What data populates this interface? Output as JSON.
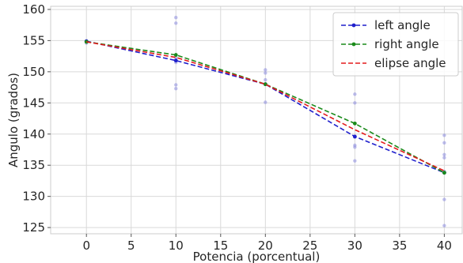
{
  "chart_data": {
    "type": "line",
    "xlabel": "Potencia (porcentual)",
    "ylabel": "Angulo (grados)",
    "xlim": [
      -4,
      42
    ],
    "ylim": [
      124,
      160.5
    ],
    "xticks": [
      0,
      5,
      10,
      15,
      20,
      25,
      30,
      35,
      40
    ],
    "yticks": [
      125,
      130,
      135,
      140,
      145,
      150,
      155,
      160
    ],
    "grid": true,
    "legend_position": "top-right",
    "x": [
      0,
      10,
      20,
      30,
      40
    ],
    "series": [
      {
        "name": "left angle",
        "values": [
          154.9,
          151.8,
          148.0,
          139.6,
          133.8
        ],
        "color": "#1f1fcc",
        "style": "dashed",
        "marker": "dot"
      },
      {
        "name": "right angle",
        "values": [
          154.8,
          152.7,
          148.0,
          141.7,
          133.8
        ],
        "color": "#1a8a1a",
        "style": "dashed",
        "marker": "dot"
      },
      {
        "name": "elipse angle",
        "values": [
          154.8,
          152.3,
          148.0,
          140.7,
          134.1
        ],
        "color": "#e31a1c",
        "style": "dashed",
        "marker": "none"
      }
    ],
    "scatter_points": [
      {
        "x": 0,
        "y": 154.9
      },
      {
        "x": 0,
        "y": 154.6
      },
      {
        "x": 10,
        "y": 158.7
      },
      {
        "x": 10,
        "y": 157.8
      },
      {
        "x": 10,
        "y": 152.2
      },
      {
        "x": 10,
        "y": 151.5
      },
      {
        "x": 10,
        "y": 147.9
      },
      {
        "x": 10,
        "y": 147.3
      },
      {
        "x": 20,
        "y": 150.3
      },
      {
        "x": 20,
        "y": 149.8
      },
      {
        "x": 20,
        "y": 148.7
      },
      {
        "x": 20,
        "y": 148.0
      },
      {
        "x": 20,
        "y": 145.1
      },
      {
        "x": 30,
        "y": 146.4
      },
      {
        "x": 30,
        "y": 145.0
      },
      {
        "x": 30,
        "y": 139.5
      },
      {
        "x": 30,
        "y": 138.2
      },
      {
        "x": 30,
        "y": 137.9
      },
      {
        "x": 30,
        "y": 135.7
      },
      {
        "x": 40,
        "y": 139.8
      },
      {
        "x": 40,
        "y": 138.6
      },
      {
        "x": 40,
        "y": 136.7
      },
      {
        "x": 40,
        "y": 136.2
      },
      {
        "x": 40,
        "y": 134.0
      },
      {
        "x": 40,
        "y": 129.5
      },
      {
        "x": 40,
        "y": 125.3
      }
    ],
    "scatter_color": "#8a8adf"
  }
}
